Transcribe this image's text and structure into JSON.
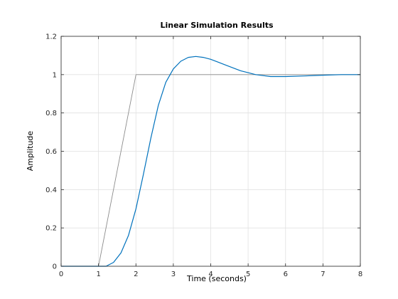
{
  "chart_data": {
    "type": "line",
    "title": "Linear Simulation Results",
    "xlabel": "Time (seconds)",
    "ylabel": "Amplitude",
    "xlim": [
      0,
      8
    ],
    "ylim": [
      0,
      1.2
    ],
    "xticks": [
      "0",
      "1",
      "2",
      "3",
      "4",
      "5",
      "6",
      "7",
      "8"
    ],
    "yticks": [
      "0",
      "0.2",
      "0.4",
      "0.6",
      "0.8",
      "1",
      "1.2"
    ],
    "grid": true,
    "legend": "none",
    "series": [
      {
        "role": "input",
        "color": "#8c8c8c",
        "x": [
          0,
          1,
          2,
          8
        ],
        "y": [
          0,
          0,
          1,
          1
        ]
      },
      {
        "role": "response",
        "color": "#0072bd",
        "x": [
          0,
          1.2,
          1.4,
          1.6,
          1.8,
          2.0,
          2.2,
          2.4,
          2.6,
          2.8,
          3.0,
          3.2,
          3.4,
          3.6,
          3.8,
          4.0,
          4.2,
          4.4,
          4.6,
          4.8,
          5.0,
          5.2,
          5.4,
          5.6,
          5.8,
          6.0,
          6.5,
          7.0,
          7.5,
          8.0
        ],
        "y": [
          0,
          0,
          0.02,
          0.07,
          0.16,
          0.3,
          0.48,
          0.67,
          0.84,
          0.96,
          1.03,
          1.07,
          1.09,
          1.095,
          1.09,
          1.08,
          1.065,
          1.05,
          1.035,
          1.02,
          1.01,
          1.0,
          0.995,
          0.99,
          0.99,
          0.99,
          0.993,
          0.997,
          1.0,
          1.0
        ]
      }
    ]
  }
}
